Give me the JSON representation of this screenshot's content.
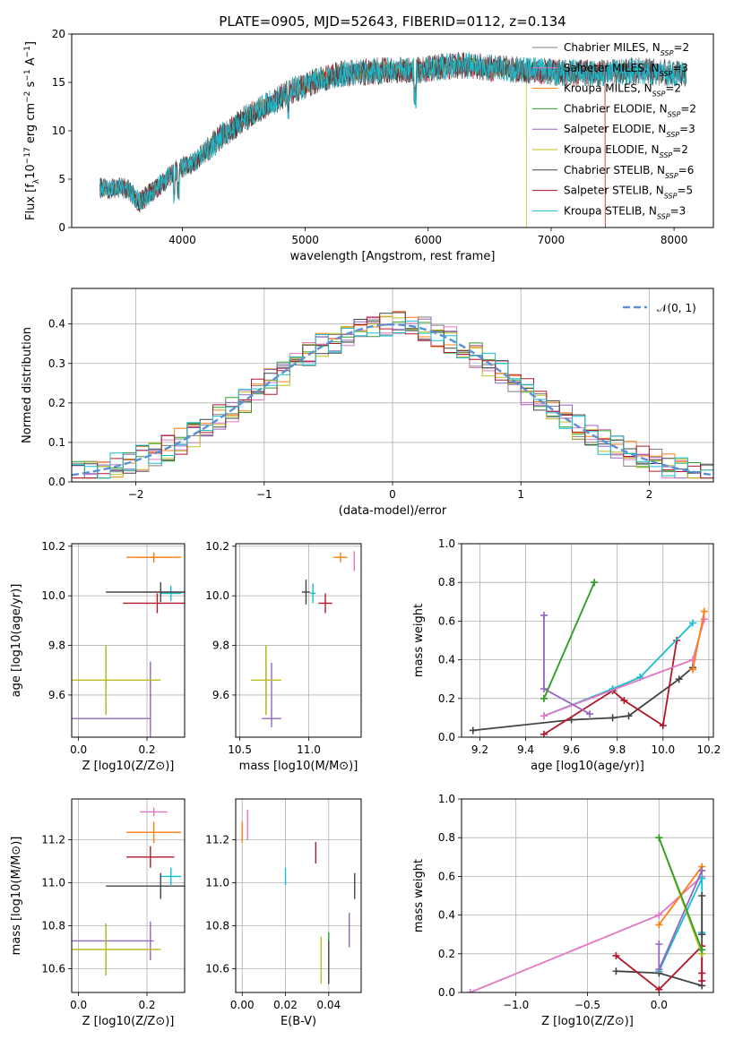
{
  "title": "PLATE=0905, MJD=52643, FIBERID=0112, z=0.134",
  "colors": {
    "Chabrier MILES": "#7f7f7f",
    "Salpeter MILES": "#e377c2",
    "Kroupa MILES": "#ff7f0e",
    "Chabrier ELODIE": "#2ca02c",
    "Salpeter ELODIE": "#9467bd",
    "Kroupa ELODIE": "#bcbd22",
    "Chabrier STELIB": "#444444",
    "Salpeter STELIB": "#b2182b",
    "Kroupa STELIB": "#17becf"
  },
  "chart_data": [
    {
      "type": "line",
      "id": "spectrum",
      "xlabel": "wavelength [Angstrom, rest frame]",
      "ylabel": "Flux [f_λ 10^-17 erg cm^-2 s^-1 A^-1]",
      "xlim": [
        3100,
        8320
      ],
      "ylim": [
        0,
        20
      ],
      "xticks": [
        "4000",
        "5000",
        "6000",
        "7000",
        "8000"
      ],
      "yticks": [
        "0",
        "5",
        "10",
        "15",
        "20"
      ],
      "grid": false,
      "legend": "top-right",
      "continuum": {
        "x": [
          3330,
          3550,
          3650,
          3800,
          3950,
          4100,
          4300,
          4500,
          4700,
          4900,
          5100,
          5300,
          5500,
          5700,
          5900,
          6100,
          6300,
          6500,
          6700,
          6900,
          7100,
          7300,
          7500,
          7700,
          7900,
          8100
        ],
        "y": [
          4.0,
          4.1,
          2.6,
          4.2,
          5.9,
          6.8,
          9.2,
          11.2,
          12.7,
          14.2,
          15.2,
          15.9,
          16.1,
          16.3,
          16.2,
          16.6,
          16.8,
          16.5,
          16.3,
          16.2,
          16.0,
          16.0,
          16.0,
          16.2,
          16.0,
          15.8
        ]
      },
      "series": [
        {
          "name": "Chabrier MILES",
          "ssp": "2"
        },
        {
          "name": "Salpeter MILES",
          "ssp": "3"
        },
        {
          "name": "Kroupa MILES",
          "ssp": "2"
        },
        {
          "name": "Chabrier ELODIE",
          "ssp": "2"
        },
        {
          "name": "Salpeter ELODIE",
          "ssp": "3"
        },
        {
          "name": "Kroupa ELODIE",
          "ssp": "2"
        },
        {
          "name": "Chabrier STELIB",
          "ssp": "6"
        },
        {
          "name": "Salpeter STELIB",
          "ssp": "5"
        },
        {
          "name": "Kroupa STELIB",
          "ssp": "3"
        }
      ]
    },
    {
      "type": "line",
      "id": "residuals",
      "xlabel": "(data-model)/error",
      "ylabel": "Normed distribution",
      "xlim": [
        -2.5,
        2.5
      ],
      "ylim": [
        0,
        0.49
      ],
      "xticks": [
        "−2",
        "−1",
        "0",
        "1",
        "2"
      ],
      "yticks": [
        "0.0",
        "0.1",
        "0.2",
        "0.3",
        "0.4"
      ],
      "grid": true,
      "legend": "top-right",
      "legend_label": "𝒩(0, 1)"
    },
    {
      "type": "scatter",
      "id": "age-vs-Z",
      "xlabel": "Z [log10(Z/Z⊙)]",
      "ylabel": "age [log10(age/yr)]",
      "xlim": [
        -0.02,
        0.31
      ],
      "ylim": [
        9.43,
        10.21
      ],
      "xticks": [
        "0.0",
        "0.2"
      ],
      "yticks": [
        "9.6",
        "9.8",
        "10.0",
        "10.2"
      ],
      "points": [
        {
          "s": "Salpeter MILES",
          "x": 0.22,
          "y": 10.155,
          "xe": 0.04,
          "ye": 0.02
        },
        {
          "s": "Kroupa MILES",
          "x": 0.22,
          "y": 10.155,
          "xe": 0.08,
          "ye": 0.02
        },
        {
          "s": "Kroupa STELIB",
          "x": 0.27,
          "y": 10.01,
          "xe": 0.03,
          "ye": 0.03
        },
        {
          "s": "Chabrier STELIB",
          "x": 0.24,
          "y": 10.015,
          "xe": 0.16,
          "ye": 0.04
        },
        {
          "s": "Salpeter STELIB",
          "x": 0.23,
          "y": 9.97,
          "xe": 0.1,
          "ye": 0.04
        },
        {
          "s": "Salpeter ELODIE",
          "x": 0.08,
          "y": 9.505,
          "xe": 0.13,
          "ye": 0.0
        },
        {
          "s": "Salpeter ELODIE",
          "x": 0.21,
          "y": 9.505,
          "xe": 0.0,
          "ye": 0.23
        },
        {
          "s": "Chabrier ELODIE",
          "x": 0.08,
          "y": 9.66,
          "xe": 0.0,
          "ye": 0.14
        },
        {
          "s": "Kroupa ELODIE",
          "x": 0.08,
          "y": 9.66,
          "xe": 0.16,
          "ye": 0.14
        }
      ]
    },
    {
      "type": "scatter",
      "id": "age-vs-mass",
      "xlabel": "mass [log10(M/M⊙)]",
      "ylabel": "",
      "xlim": [
        10.47,
        11.38
      ],
      "ylim": [
        9.43,
        10.21
      ],
      "xticks": [
        "10.5",
        "11.0"
      ],
      "yticks": [
        "9.6",
        "9.8",
        "10.0",
        "10.2"
      ],
      "points": [
        {
          "s": "Salpeter MILES",
          "x": 11.33,
          "y": 10.14,
          "xe": 0.0,
          "ye": 0.04
        },
        {
          "s": "Kroupa MILES",
          "x": 11.23,
          "y": 10.155,
          "xe": 0.05,
          "ye": 0.02
        },
        {
          "s": "Kroupa STELIB",
          "x": 11.03,
          "y": 10.01,
          "xe": 0.02,
          "ye": 0.04
        },
        {
          "s": "Chabrier STELIB",
          "x": 10.98,
          "y": 10.015,
          "xe": 0.03,
          "ye": 0.05
        },
        {
          "s": "Salpeter STELIB",
          "x": 11.12,
          "y": 9.97,
          "xe": 0.05,
          "ye": 0.04
        },
        {
          "s": "Salpeter ELODIE",
          "x": 10.73,
          "y": 9.505,
          "xe": 0.07,
          "ye": 0.0
        },
        {
          "s": "Salpeter ELODIE",
          "x": 10.73,
          "y": 9.6,
          "xe": 0.0,
          "ye": 0.13
        },
        {
          "s": "Chabrier ELODIE",
          "x": 10.69,
          "y": 9.66,
          "xe": 0.0,
          "ye": 0.14
        },
        {
          "s": "Kroupa ELODIE",
          "x": 10.69,
          "y": 9.66,
          "xe": 0.11,
          "ye": 0.14
        }
      ]
    },
    {
      "type": "line",
      "id": "massweight-vs-age",
      "xlabel": "age [log10(age/yr)]",
      "ylabel": "mass weight",
      "xlim": [
        9.12,
        10.22
      ],
      "ylim": [
        0,
        1.0
      ],
      "xticks": [
        "9.2",
        "9.4",
        "9.6",
        "9.8",
        "10.0",
        "10.2"
      ],
      "yticks": [
        "0.0",
        "0.2",
        "0.4",
        "0.6",
        "0.8",
        "1.0"
      ],
      "series": [
        {
          "s": "Chabrier STELIB",
          "x": [
            9.17,
            9.6,
            9.78,
            9.85,
            10.07,
            10.13
          ],
          "y": [
            0.035,
            0.09,
            0.1,
            0.11,
            0.3,
            0.36
          ]
        },
        {
          "s": "Salpeter STELIB",
          "x": [
            9.48,
            9.78,
            9.83,
            10.0,
            10.06
          ],
          "y": [
            0.015,
            0.24,
            0.19,
            0.06,
            0.5
          ]
        },
        {
          "s": "Kroupa STELIB",
          "x": [
            9.48,
            9.78,
            9.9,
            10.13
          ],
          "y": [
            0.11,
            0.25,
            0.31,
            0.59
          ]
        },
        {
          "s": "Salpeter MILES",
          "x": [
            9.48,
            10.13,
            10.18
          ],
          "y": [
            0.11,
            0.4,
            0.61
          ]
        },
        {
          "s": "Kroupa MILES",
          "x": [
            10.13,
            10.18
          ],
          "y": [
            0.35,
            0.65
          ]
        },
        {
          "s": "Salpeter ELODIE",
          "x": [
            9.48,
            9.48,
            9.68
          ],
          "y": [
            0.63,
            0.25,
            0.12
          ]
        },
        {
          "s": "Kroupa ELODIE",
          "x": [
            9.48,
            9.7
          ],
          "y": [
            0.2,
            0.8
          ]
        },
        {
          "s": "Chabrier ELODIE",
          "x": [
            9.48,
            9.7
          ],
          "y": [
            0.2,
            0.8
          ]
        }
      ]
    },
    {
      "type": "scatter",
      "id": "mass-vs-Z",
      "xlabel": "Z [log10(Z/Z⊙)]",
      "ylabel": "mass [log10(M/M⊙)]",
      "xlim": [
        -0.02,
        0.31
      ],
      "ylim": [
        10.49,
        11.39
      ],
      "xticks": [
        "0.0",
        "0.2"
      ],
      "yticks": [
        "10.6",
        "10.8",
        "11.0",
        "11.2"
      ],
      "points": [
        {
          "s": "Salpeter MILES",
          "x": 0.22,
          "y": 11.33,
          "xe": 0.04,
          "ye": 0.02
        },
        {
          "s": "Kroupa MILES",
          "x": 0.22,
          "y": 11.235,
          "xe": 0.08,
          "ye": 0.05
        },
        {
          "s": "Salpeter STELIB",
          "x": 0.21,
          "y": 11.12,
          "xe": 0.07,
          "ye": 0.05
        },
        {
          "s": "Kroupa STELIB",
          "x": 0.27,
          "y": 11.03,
          "xe": 0.03,
          "ye": 0.04
        },
        {
          "s": "Chabrier STELIB",
          "x": 0.24,
          "y": 10.985,
          "xe": 0.16,
          "ye": 0.06
        },
        {
          "s": "Salpeter ELODIE",
          "x": 0.08,
          "y": 10.73,
          "xe": 0.14,
          "ye": 0.0
        },
        {
          "s": "Salpeter ELODIE",
          "x": 0.21,
          "y": 10.73,
          "xe": 0.0,
          "ye": 0.09
        },
        {
          "s": "Chabrier ELODIE",
          "x": 0.08,
          "y": 10.69,
          "xe": 0.0,
          "ye": 0.12
        },
        {
          "s": "Kroupa ELODIE",
          "x": 0.08,
          "y": 10.69,
          "xe": 0.16,
          "ye": 0.12
        }
      ]
    },
    {
      "type": "scatter",
      "id": "mass-vs-EBV",
      "xlabel": "E(B-V)",
      "ylabel": "",
      "xlim": [
        -0.003,
        0.055
      ],
      "ylim": [
        10.49,
        11.39
      ],
      "xticks": [
        "0.00",
        "0.02",
        "0.04"
      ],
      "yticks": [
        "10.6",
        "10.8",
        "11.0",
        "11.2"
      ],
      "points": [
        {
          "s": "Salpeter MILES",
          "x": 0.0025,
          "y": 11.27,
          "xe": 0.0,
          "ye": 0.07
        },
        {
          "s": "Kroupa MILES",
          "x": 0.0,
          "y": 11.235,
          "xe": 0.0,
          "ye": 0.05
        },
        {
          "s": "Salpeter STELIB",
          "x": 0.034,
          "y": 11.14,
          "xe": 0.0,
          "ye": 0.05
        },
        {
          "s": "Kroupa STELIB",
          "x": 0.02,
          "y": 11.03,
          "xe": 0.0,
          "ye": 0.04
        },
        {
          "s": "Chabrier STELIB",
          "x": 0.052,
          "y": 10.985,
          "xe": 0.0,
          "ye": 0.06
        },
        {
          "s": "Salpeter ELODIE",
          "x": 0.0495,
          "y": 10.78,
          "xe": 0.0,
          "ye": 0.08
        },
        {
          "s": "Kroupa ELODIE",
          "x": 0.0365,
          "y": 10.64,
          "xe": 0.0,
          "ye": 0.11
        },
        {
          "s": "Chabrier ELODIE",
          "x": 0.04,
          "y": 10.65,
          "xe": 0.0,
          "ye": 0.12
        },
        {
          "s": "Chabrier STELIB",
          "x": 0.04,
          "y": 10.63,
          "xe": 0.0,
          "ye": 0.1
        }
      ]
    },
    {
      "type": "line",
      "id": "massweight-vs-Z",
      "xlabel": "Z [log10(Z/Z⊙)]",
      "ylabel": "mass weight",
      "xlim": [
        -1.38,
        0.38
      ],
      "ylim": [
        0,
        1.0
      ],
      "xticks": [
        "−1.0",
        "−0.5",
        "0.0"
      ],
      "yticks": [
        "0.0",
        "0.2",
        "0.4",
        "0.6",
        "0.8",
        "1.0"
      ],
      "series": [
        {
          "s": "Salpeter MILES",
          "x": [
            -1.32,
            0.0,
            0.3
          ],
          "y": [
            0.0,
            0.4,
            0.6
          ]
        },
        {
          "s": "Kroupa MILES",
          "x": [
            0.0,
            0.3
          ],
          "y": [
            0.35,
            0.65
          ]
        },
        {
          "s": "Kroupa STELIB",
          "x": [
            0.0,
            0.3,
            0.3
          ],
          "y": [
            0.11,
            0.59,
            0.31
          ]
        },
        {
          "s": "Chabrier STELIB",
          "x": [
            -0.3,
            0.0,
            0.3,
            0.3,
            0.3
          ],
          "y": [
            0.11,
            0.1,
            0.035,
            0.3,
            0.5
          ]
        },
        {
          "s": "Salpeter STELIB",
          "x": [
            -0.3,
            0.0,
            0.3,
            0.3,
            0.3
          ],
          "y": [
            0.19,
            0.015,
            0.24,
            0.06,
            0.1
          ]
        },
        {
          "s": "Salpeter ELODIE",
          "x": [
            0.0,
            0.0,
            0.3
          ],
          "y": [
            0.25,
            0.12,
            0.63
          ]
        },
        {
          "s": "Kroupa ELODIE",
          "x": [
            0.0,
            0.3
          ],
          "y": [
            0.8,
            0.2
          ]
        },
        {
          "s": "Chabrier ELODIE",
          "x": [
            0.0,
            0.3
          ],
          "y": [
            0.8,
            0.22
          ]
        }
      ]
    }
  ]
}
